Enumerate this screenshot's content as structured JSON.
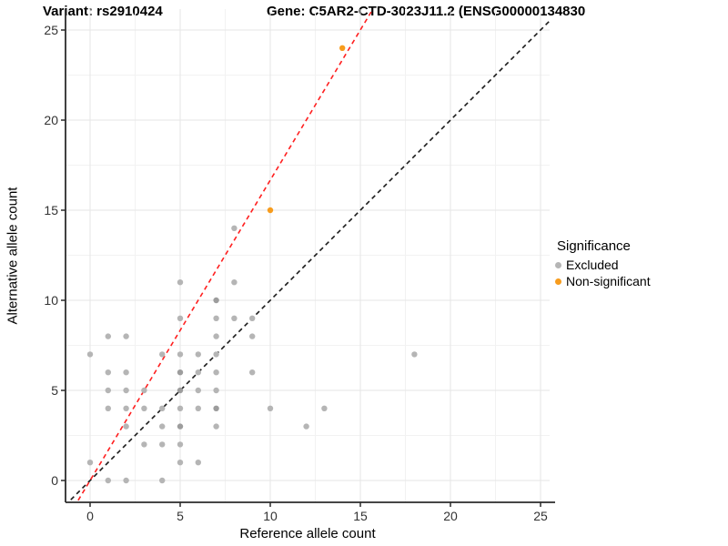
{
  "title_variant": "Variant: rs2910424",
  "title_gene": "Gene: C5AR2-CTD-3023J11.2 (ENSG00000134830",
  "axes": {
    "x": {
      "label": "Reference allele count",
      "ticks": [
        0,
        5,
        10,
        15,
        20,
        25
      ]
    },
    "y": {
      "label": "Alternative allele count",
      "ticks": [
        0,
        5,
        10,
        15,
        20,
        25
      ]
    }
  },
  "legend": {
    "title": "Significance",
    "items": [
      {
        "label": "Excluded",
        "color": "#b5b5b5"
      },
      {
        "label": "Non-significant",
        "color": "#F79C1D"
      }
    ]
  },
  "chart_data": {
    "type": "scatter",
    "title": "Variant: rs2910424 / Gene: C5AR2-CTD-3023J11.2 (ENSG00000134830",
    "xlabel": "Reference allele count",
    "ylabel": "Alternative allele count",
    "xlim": [
      0,
      25
    ],
    "ylim": [
      0,
      25
    ],
    "grid": {
      "major": [
        0,
        5,
        10,
        15,
        20,
        25
      ],
      "minor": [
        2.5,
        7.5,
        12.5,
        17.5,
        22.5
      ]
    },
    "legend_position": "right",
    "series": [
      {
        "name": "Excluded",
        "color": "#b5b5b5",
        "points": [
          [
            1,
            0
          ],
          [
            2,
            0
          ],
          [
            4,
            0
          ],
          [
            0,
            1
          ],
          [
            5,
            1
          ],
          [
            6,
            1
          ],
          [
            3,
            2
          ],
          [
            4,
            2
          ],
          [
            5,
            2
          ],
          [
            2,
            3
          ],
          [
            4,
            3
          ],
          [
            5,
            3
          ],
          [
            7,
            3
          ],
          [
            12,
            3
          ],
          [
            1,
            4
          ],
          [
            2,
            4
          ],
          [
            3,
            4
          ],
          [
            4,
            4
          ],
          [
            5,
            4
          ],
          [
            6,
            4
          ],
          [
            7,
            4
          ],
          [
            10,
            4
          ],
          [
            13,
            4
          ],
          [
            1,
            5
          ],
          [
            2,
            5
          ],
          [
            3,
            5
          ],
          [
            5,
            5
          ],
          [
            6,
            5
          ],
          [
            7,
            5
          ],
          [
            1,
            6
          ],
          [
            2,
            6
          ],
          [
            5,
            6
          ],
          [
            6,
            6
          ],
          [
            7,
            6
          ],
          [
            9,
            6
          ],
          [
            0,
            7
          ],
          [
            4,
            7
          ],
          [
            5,
            7
          ],
          [
            6,
            7
          ],
          [
            7,
            7
          ],
          [
            18,
            7
          ],
          [
            1,
            8
          ],
          [
            2,
            8
          ],
          [
            7,
            8
          ],
          [
            9,
            8
          ],
          [
            5,
            9
          ],
          [
            7,
            9
          ],
          [
            8,
            9
          ],
          [
            9,
            9
          ],
          [
            7,
            10
          ],
          [
            5,
            11
          ],
          [
            8,
            11
          ],
          [
            8,
            14
          ]
        ],
        "overplotted_darker": [
          [
            5,
            3
          ],
          [
            5,
            5
          ],
          [
            5,
            6
          ],
          [
            7,
            4
          ],
          [
            7,
            10
          ]
        ]
      },
      {
        "name": "Non-significant",
        "color": "#F79C1D",
        "points": [
          [
            10,
            15
          ],
          [
            14,
            24
          ]
        ]
      }
    ],
    "lines": [
      {
        "name": "identity-line",
        "color": "#1a1a1a",
        "dashed": true,
        "slope": 1.0,
        "intercept": 0
      },
      {
        "name": "ratio-line",
        "color": "#FF1F1F",
        "dashed": true,
        "slope": 1.667,
        "intercept": 0
      }
    ]
  }
}
